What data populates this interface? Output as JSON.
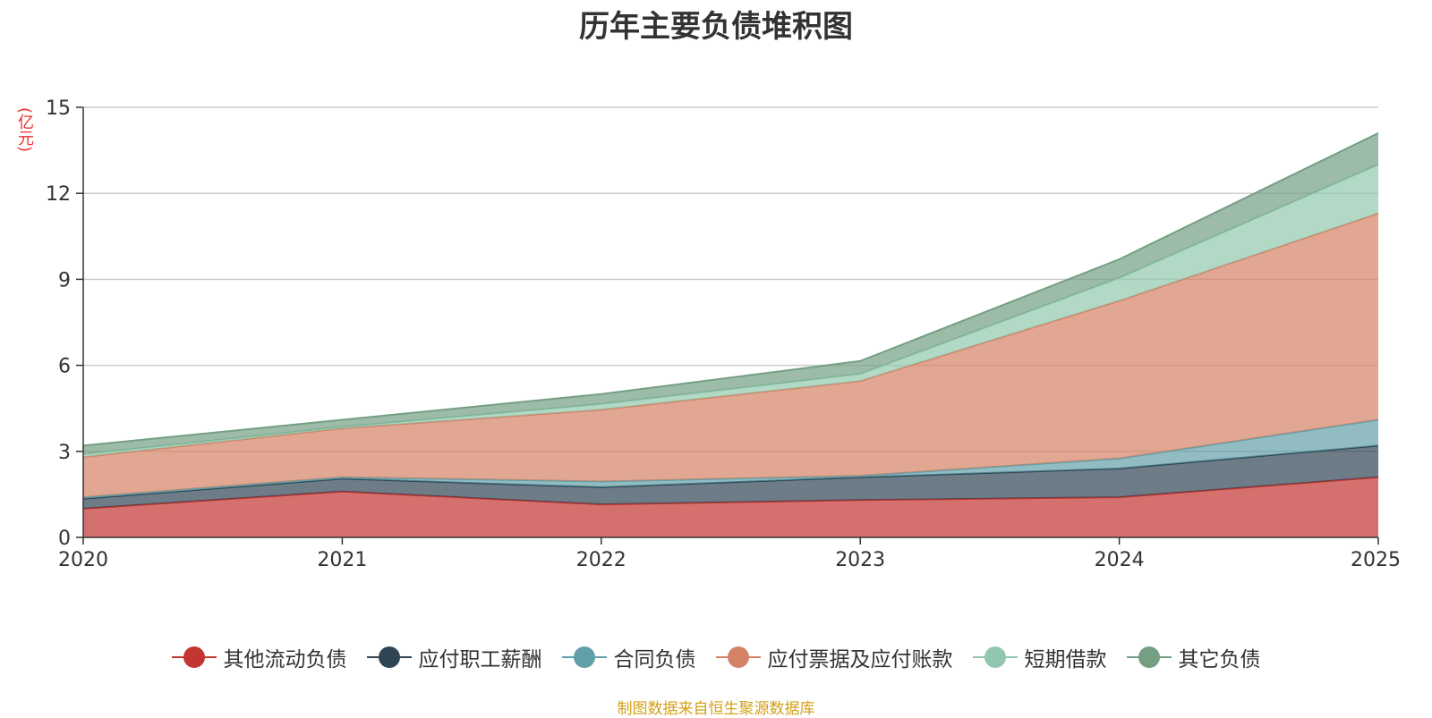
{
  "chart_data": {
    "type": "area",
    "stacked": true,
    "title": "历年主要负债堆积图",
    "ylabel": "(亿元)",
    "xlabel": "",
    "categories": [
      "2020",
      "2021",
      "2022",
      "2023",
      "2024",
      "2025"
    ],
    "ylim": [
      0,
      15
    ],
    "yticks": [
      0,
      3,
      6,
      9,
      12,
      15
    ],
    "grid": true,
    "legend_position": "bottom",
    "series": [
      {
        "name": "其他流动负债",
        "color": "#c23531",
        "values": [
          1.0,
          1.6,
          1.15,
          1.3,
          1.4,
          2.1
        ]
      },
      {
        "name": "应付职工薪酬",
        "color": "#2f4554",
        "values": [
          0.35,
          0.45,
          0.6,
          0.8,
          1.0,
          1.1
        ]
      },
      {
        "name": "合同负债",
        "color": "#61a0a8",
        "values": [
          0.05,
          0.05,
          0.2,
          0.05,
          0.35,
          0.9
        ]
      },
      {
        "name": "应付票据及应付账款",
        "color": "#d48265",
        "values": [
          1.4,
          1.7,
          2.5,
          3.3,
          5.5,
          7.2
        ]
      },
      {
        "name": "短期借款",
        "color": "#91c7ae",
        "values": [
          0.1,
          0.05,
          0.2,
          0.25,
          0.8,
          1.7
        ]
      },
      {
        "name": "其它负债",
        "color": "#749f83",
        "values": [
          0.3,
          0.25,
          0.35,
          0.45,
          0.65,
          1.1
        ]
      }
    ]
  },
  "source_note": "制图数据来自恒生聚源数据库"
}
